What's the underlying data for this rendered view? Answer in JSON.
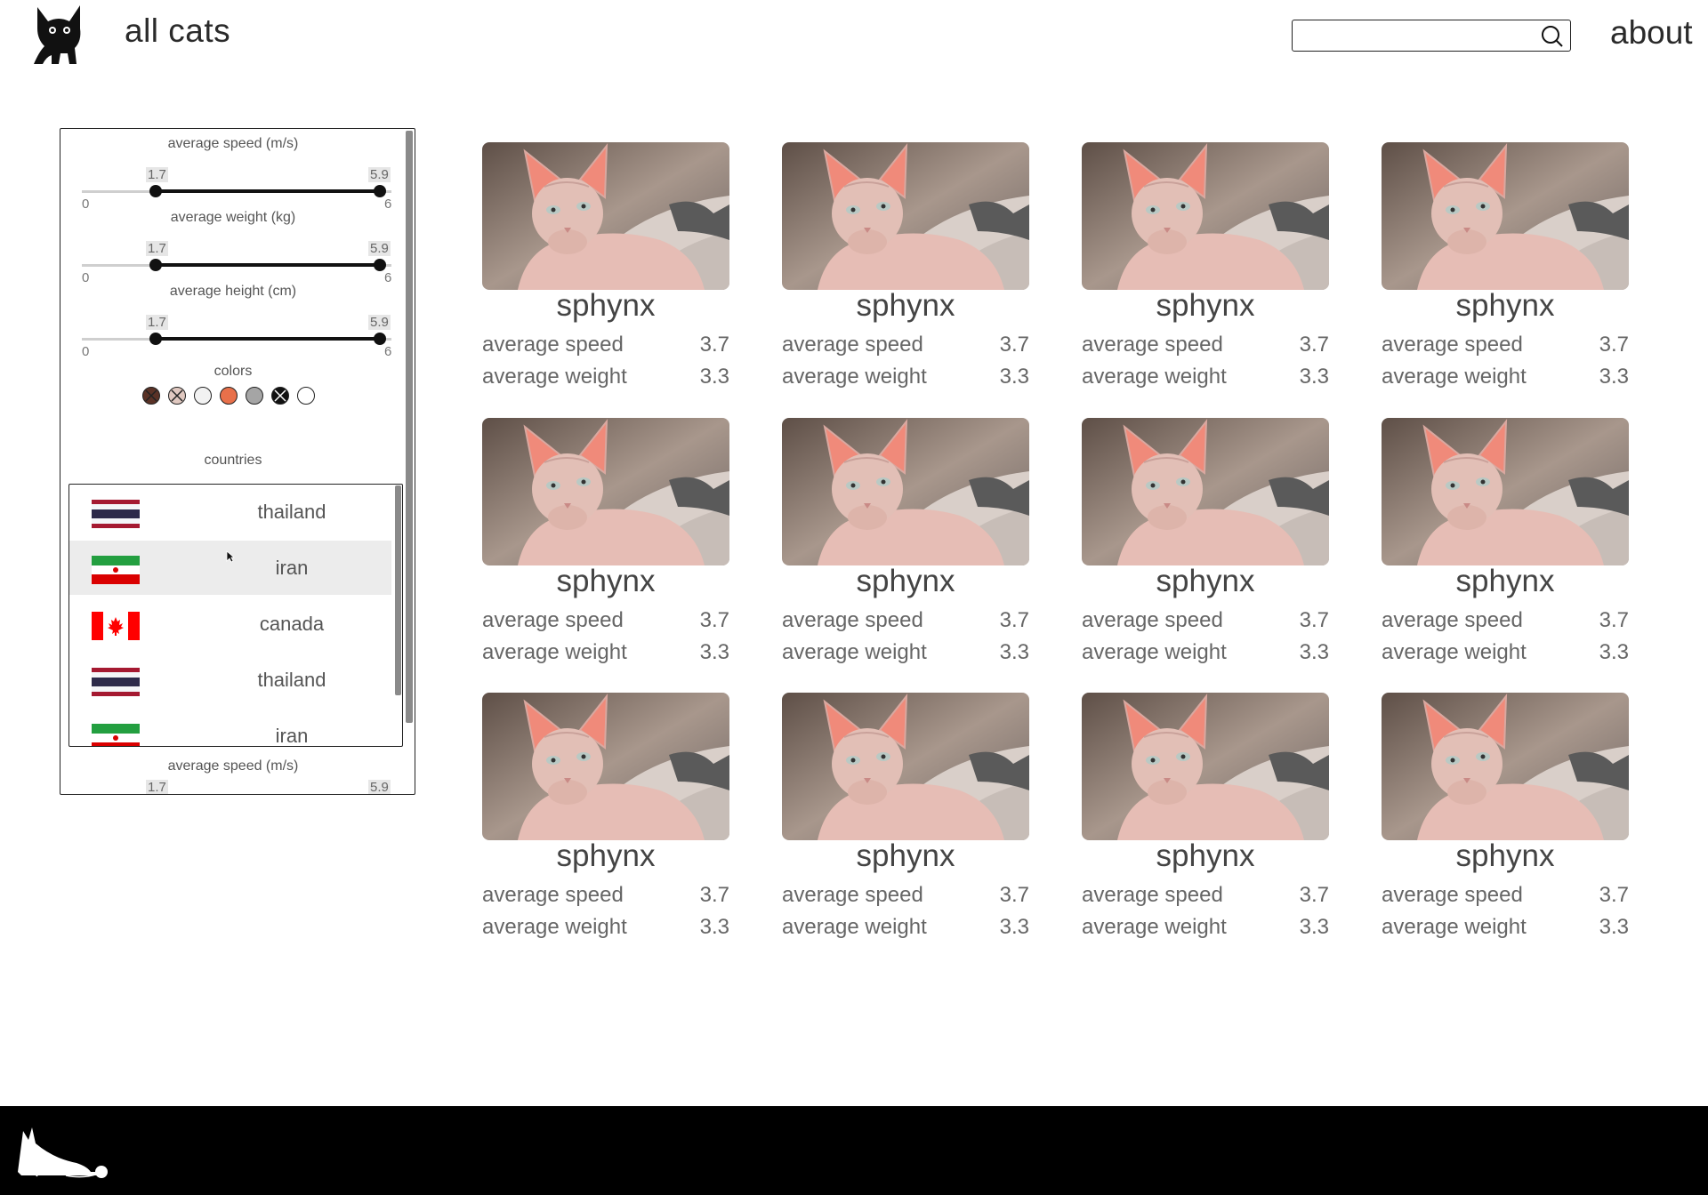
{
  "header": {
    "brand": "all cats",
    "search_placeholder": "",
    "about_label": "about",
    "logo_icon": "cat-logo-icon",
    "search_icon": "search-icon"
  },
  "filters": {
    "speed": {
      "label": "average speed (m/s)",
      "min": "0",
      "max": "6",
      "low": "1.7",
      "high": "5.9"
    },
    "weight": {
      "label": "average weight (kg)",
      "min": "0",
      "max": "6",
      "low": "1.7",
      "high": "5.9"
    },
    "height": {
      "label": "average height (cm)",
      "min": "0",
      "max": "6",
      "low": "1.7",
      "high": "5.9"
    },
    "colors_label": "colors",
    "colors": [
      {
        "hex": "#5a3226",
        "crossed": true
      },
      {
        "hex": "#e0c8c0",
        "crossed": true
      },
      {
        "hex": "#f2f2f2",
        "crossed": false
      },
      {
        "hex": "#e8704a",
        "crossed": false
      },
      {
        "hex": "#a5a5a5",
        "crossed": false
      },
      {
        "hex": "#111111",
        "crossed": true
      },
      {
        "hex": "#ffffff",
        "crossed": false
      }
    ],
    "countries_label": "countries",
    "countries": [
      {
        "name": "thailand",
        "flag": "thailand-flag-icon"
      },
      {
        "name": "iran",
        "flag": "iran-flag-icon"
      },
      {
        "name": "canada",
        "flag": "canada-flag-icon"
      },
      {
        "name": "thailand",
        "flag": "thailand-flag-icon"
      },
      {
        "name": "iran",
        "flag": "iran-flag-icon"
      }
    ],
    "repeat_label": "average speed (m/s)",
    "repeat_low": "1.7",
    "repeat_high": "5.9"
  },
  "cards": [
    {
      "name": "sphynx",
      "speed_label": "average speed",
      "speed": "3.7",
      "weight_label": "average weight",
      "weight": "3.3"
    },
    {
      "name": "sphynx",
      "speed_label": "average speed",
      "speed": "3.7",
      "weight_label": "average weight",
      "weight": "3.3"
    },
    {
      "name": "sphynx",
      "speed_label": "average speed",
      "speed": "3.7",
      "weight_label": "average weight",
      "weight": "3.3"
    },
    {
      "name": "sphynx",
      "speed_label": "average speed",
      "speed": "3.7",
      "weight_label": "average weight",
      "weight": "3.3"
    },
    {
      "name": "sphynx",
      "speed_label": "average speed",
      "speed": "3.7",
      "weight_label": "average weight",
      "weight": "3.3"
    },
    {
      "name": "sphynx",
      "speed_label": "average speed",
      "speed": "3.7",
      "weight_label": "average weight",
      "weight": "3.3"
    },
    {
      "name": "sphynx",
      "speed_label": "average speed",
      "speed": "3.7",
      "weight_label": "average weight",
      "weight": "3.3"
    },
    {
      "name": "sphynx",
      "speed_label": "average speed",
      "speed": "3.7",
      "weight_label": "average weight",
      "weight": "3.3"
    },
    {
      "name": "sphynx",
      "speed_label": "average speed",
      "speed": "3.7",
      "weight_label": "average weight",
      "weight": "3.3"
    },
    {
      "name": "sphynx",
      "speed_label": "average speed",
      "speed": "3.7",
      "weight_label": "average weight",
      "weight": "3.3"
    },
    {
      "name": "sphynx",
      "speed_label": "average speed",
      "speed": "3.7",
      "weight_label": "average weight",
      "weight": "3.3"
    },
    {
      "name": "sphynx",
      "speed_label": "average speed",
      "speed": "3.7",
      "weight_label": "average weight",
      "weight": "3.3"
    }
  ],
  "footer": {
    "logo_icon": "cat-playing-yarn-icon"
  }
}
